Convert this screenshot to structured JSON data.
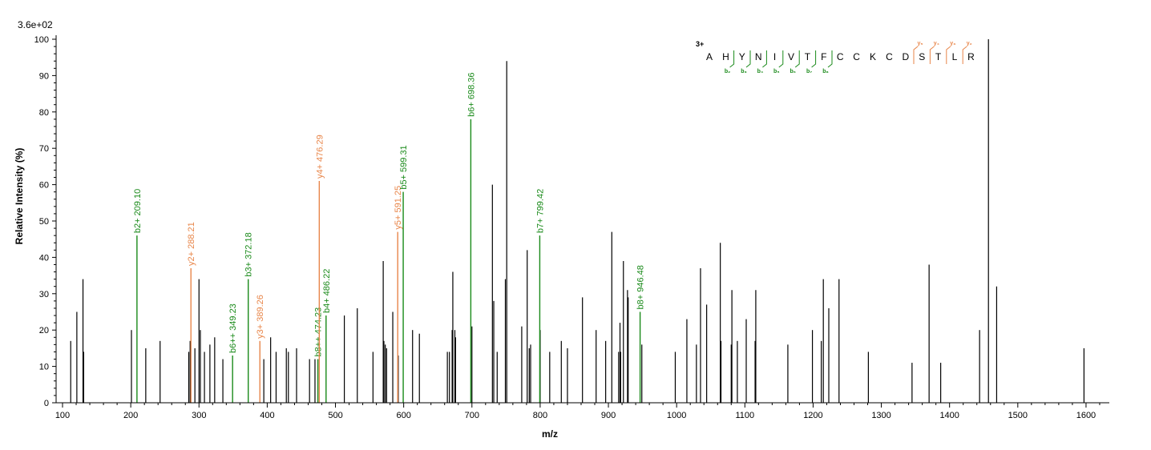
{
  "colors": {
    "b_ion": "#1a8a1a",
    "y_ion": "#e8864a",
    "peak": "#000000",
    "charge": "#1a1aa8"
  },
  "chart_data": {
    "type": "bar",
    "scale_label": "3.6e+02",
    "xlabel": "m/z",
    "ylabel": "Relative   Intensity (%)",
    "xlim": [
      95,
      1630
    ],
    "ylim": [
      0,
      100
    ],
    "x_ticks": [
      100,
      200,
      300,
      400,
      500,
      600,
      700,
      800,
      900,
      1000,
      1100,
      1200,
      1300,
      1400,
      1500,
      1600
    ],
    "y_ticks": [
      0,
      10,
      20,
      30,
      40,
      50,
      60,
      70,
      80,
      90,
      100
    ],
    "peaks": [
      {
        "mz": 112,
        "i": 17
      },
      {
        "mz": 121,
        "i": 25
      },
      {
        "mz": 130,
        "i": 34
      },
      {
        "mz": 131,
        "i": 14
      },
      {
        "mz": 201,
        "i": 20
      },
      {
        "mz": 222,
        "i": 15
      },
      {
        "mz": 243,
        "i": 17
      },
      {
        "mz": 285,
        "i": 14
      },
      {
        "mz": 287,
        "i": 17
      },
      {
        "mz": 294,
        "i": 15
      },
      {
        "mz": 300,
        "i": 34
      },
      {
        "mz": 302,
        "i": 20
      },
      {
        "mz": 308,
        "i": 14
      },
      {
        "mz": 316,
        "i": 16
      },
      {
        "mz": 323,
        "i": 18
      },
      {
        "mz": 335,
        "i": 12
      },
      {
        "mz": 395,
        "i": 12
      },
      {
        "mz": 405,
        "i": 18
      },
      {
        "mz": 413,
        "i": 14
      },
      {
        "mz": 428,
        "i": 15
      },
      {
        "mz": 431,
        "i": 14
      },
      {
        "mz": 443,
        "i": 15
      },
      {
        "mz": 462,
        "i": 12
      },
      {
        "mz": 470,
        "i": 12
      },
      {
        "mz": 513,
        "i": 24
      },
      {
        "mz": 532,
        "i": 26
      },
      {
        "mz": 555,
        "i": 14
      },
      {
        "mz": 570,
        "i": 39
      },
      {
        "mz": 571,
        "i": 17
      },
      {
        "mz": 573,
        "i": 16
      },
      {
        "mz": 575,
        "i": 15
      },
      {
        "mz": 584,
        "i": 25
      },
      {
        "mz": 592,
        "i": 13
      },
      {
        "mz": 613,
        "i": 20
      },
      {
        "mz": 623,
        "i": 19
      },
      {
        "mz": 664,
        "i": 14
      },
      {
        "mz": 667,
        "i": 14
      },
      {
        "mz": 671,
        "i": 20
      },
      {
        "mz": 672,
        "i": 36
      },
      {
        "mz": 675,
        "i": 20
      },
      {
        "mz": 676,
        "i": 18
      },
      {
        "mz": 700,
        "i": 21
      },
      {
        "mz": 730,
        "i": 60
      },
      {
        "mz": 732,
        "i": 28
      },
      {
        "mz": 737,
        "i": 14
      },
      {
        "mz": 749,
        "i": 34
      },
      {
        "mz": 751,
        "i": 94
      },
      {
        "mz": 773,
        "i": 21
      },
      {
        "mz": 781,
        "i": 42
      },
      {
        "mz": 784,
        "i": 15
      },
      {
        "mz": 786,
        "i": 16
      },
      {
        "mz": 800,
        "i": 20
      },
      {
        "mz": 814,
        "i": 14
      },
      {
        "mz": 831,
        "i": 17
      },
      {
        "mz": 840,
        "i": 15
      },
      {
        "mz": 862,
        "i": 29
      },
      {
        "mz": 882,
        "i": 20
      },
      {
        "mz": 896,
        "i": 17
      },
      {
        "mz": 905,
        "i": 47
      },
      {
        "mz": 915,
        "i": 14
      },
      {
        "mz": 917,
        "i": 22
      },
      {
        "mz": 918,
        "i": 14
      },
      {
        "mz": 922,
        "i": 39
      },
      {
        "mz": 928,
        "i": 31
      },
      {
        "mz": 929,
        "i": 29
      },
      {
        "mz": 949,
        "i": 16
      },
      {
        "mz": 998,
        "i": 14
      },
      {
        "mz": 1015,
        "i": 23
      },
      {
        "mz": 1029,
        "i": 16
      },
      {
        "mz": 1035,
        "i": 37
      },
      {
        "mz": 1044,
        "i": 27
      },
      {
        "mz": 1064,
        "i": 44
      },
      {
        "mz": 1065,
        "i": 17
      },
      {
        "mz": 1080,
        "i": 16
      },
      {
        "mz": 1081,
        "i": 31
      },
      {
        "mz": 1089,
        "i": 17
      },
      {
        "mz": 1102,
        "i": 23
      },
      {
        "mz": 1115,
        "i": 17
      },
      {
        "mz": 1116,
        "i": 31
      },
      {
        "mz": 1163,
        "i": 16
      },
      {
        "mz": 1199,
        "i": 20
      },
      {
        "mz": 1212,
        "i": 17
      },
      {
        "mz": 1215,
        "i": 34
      },
      {
        "mz": 1223,
        "i": 26
      },
      {
        "mz": 1238,
        "i": 34
      },
      {
        "mz": 1281,
        "i": 14
      },
      {
        "mz": 1345,
        "i": 11
      },
      {
        "mz": 1370,
        "i": 38
      },
      {
        "mz": 1387,
        "i": 11
      },
      {
        "mz": 1444,
        "i": 20
      },
      {
        "mz": 1457,
        "i": 100
      },
      {
        "mz": 1469,
        "i": 32
      },
      {
        "mz": 1597,
        "i": 15
      }
    ],
    "annotated": [
      {
        "mz": 209.1,
        "i": 46,
        "label": "b2+ 209.10",
        "kind": "b"
      },
      {
        "mz": 288.21,
        "i": 37,
        "label": "y2+ 288.21",
        "kind": "y"
      },
      {
        "mz": 349.23,
        "i": 13,
        "label": "b6++ 349.23",
        "kind": "b"
      },
      {
        "mz": 372.18,
        "i": 34,
        "label": "b3+ 372.18",
        "kind": "b"
      },
      {
        "mz": 389.26,
        "i": 17,
        "label": "y3+ 389.26",
        "kind": "y"
      },
      {
        "mz": 474.23,
        "i": 12,
        "label": "b8++ 474.23",
        "kind": "b"
      },
      {
        "mz": 476.29,
        "i": 61,
        "label": "y4+ 476.29",
        "kind": "y"
      },
      {
        "mz": 486.22,
        "i": 24,
        "label": "b4+ 486.22",
        "kind": "b"
      },
      {
        "mz": 591.25,
        "i": 47,
        "label": "y5+ 591.25",
        "kind": "y"
      },
      {
        "mz": 599.31,
        "i": 58,
        "label": "b5+ 599.31",
        "kind": "b"
      },
      {
        "mz": 698.36,
        "i": 78,
        "label": "b6+ 698.36",
        "kind": "b"
      },
      {
        "mz": 799.42,
        "i": 46,
        "label": "b7+ 799.42",
        "kind": "b"
      },
      {
        "mz": 946.48,
        "i": 25,
        "label": "b8+ 946.48",
        "kind": "b"
      }
    ]
  },
  "sequence": {
    "charge": "3+",
    "residues": [
      "A",
      "H",
      "Y",
      "N",
      "I",
      "V",
      "T",
      "F",
      "C",
      "C",
      "K",
      "C",
      "D",
      "S",
      "T",
      "L",
      "R"
    ],
    "b_fragments": [
      {
        "label": "b₂",
        "after": 2
      },
      {
        "label": "b₃",
        "after": 3
      },
      {
        "label": "b₄",
        "after": 4
      },
      {
        "label": "b₅",
        "after": 5
      },
      {
        "label": "b₆",
        "after": 6
      },
      {
        "label": "b₇",
        "after": 7
      },
      {
        "label": "b₈",
        "after": 8
      }
    ],
    "y_fragments": [
      {
        "label": "y₅",
        "before": 13
      },
      {
        "label": "y₄",
        "before": 14
      },
      {
        "label": "y₃",
        "before": 15
      },
      {
        "label": "y₂",
        "before": 16
      }
    ]
  }
}
